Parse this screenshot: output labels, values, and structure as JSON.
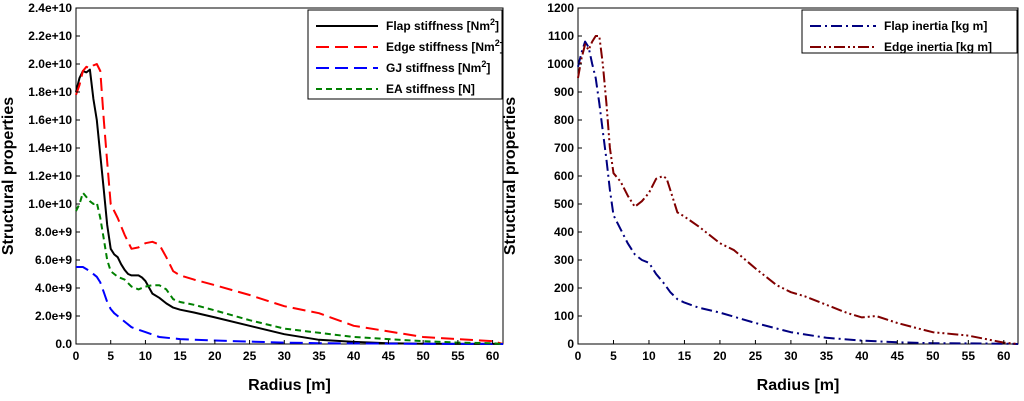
{
  "chart_data": [
    {
      "type": "line",
      "xlabel": "Radius [m]",
      "ylabel": "Structural properties",
      "xlim": [
        0,
        61.5
      ],
      "ylim": [
        0,
        24000000000
      ],
      "xticks": [
        0,
        5,
        10,
        15,
        20,
        25,
        30,
        35,
        40,
        45,
        50,
        55,
        60
      ],
      "xtick_labels": [
        "0",
        "5",
        "10",
        "15",
        "20",
        "25",
        "30",
        "35",
        "40",
        "45",
        "50",
        "55",
        "60"
      ],
      "yticks": [
        0,
        2000000000,
        4000000000,
        6000000000,
        8000000000,
        10000000000,
        12000000000,
        14000000000,
        16000000000,
        18000000000,
        20000000000,
        22000000000,
        24000000000
      ],
      "ytick_labels": [
        "0.0",
        "2.0e+9",
        "4.0e+9",
        "6.0e+9",
        "8.0e+9",
        "1.0e+10",
        "1.2e+10",
        "1.4e+10",
        "1.6e+10",
        "1.8e+10",
        "2.0e+10",
        "2.2e+10",
        "2.4e+10"
      ],
      "legend_position": "top-right",
      "series": [
        {
          "name": "Flap stiffness [Nm",
          "sup": "2",
          "suffix": "]",
          "color": "#000000",
          "dash": "solid",
          "x": [
            0,
            0.5,
            1,
            1.5,
            2,
            2.5,
            3,
            3.5,
            4,
            4.5,
            5,
            5.5,
            6,
            6.5,
            7,
            7.5,
            8,
            8.5,
            9,
            9.5,
            10,
            11,
            12,
            13,
            14,
            15,
            17,
            20,
            25,
            30,
            35,
            40,
            45,
            50,
            55,
            60,
            61.5
          ],
          "y": [
            18000000000.0,
            19000000000.0,
            19500000000.0,
            19400000000.0,
            19600000000.0,
            17500000000.0,
            16000000000.0,
            13500000000.0,
            11000000000.0,
            8500000000.0,
            6800000000.0,
            6400000000.0,
            6200000000.0,
            5700000000.0,
            5300000000.0,
            5000000000.0,
            4900000000.0,
            4900000000.0,
            4900000000.0,
            4750000000.0,
            4500000000.0,
            3600000000.0,
            3300000000.0,
            2900000000.0,
            2600000000.0,
            2450000000.0,
            2250000000.0,
            1900000000.0,
            1300000000.0,
            700000000.0,
            300000000.0,
            150000000.0,
            50000000.0,
            20000000.0,
            10000000.0,
            5000000.0,
            0
          ]
        },
        {
          "name": "Edge stiffness [Nm",
          "sup": "2",
          "suffix": "]",
          "color": "#ff0000",
          "dash": "long",
          "x": [
            0,
            0.5,
            1,
            1.5,
            2,
            2.5,
            3,
            3.5,
            4,
            4.5,
            5,
            5.5,
            6,
            7,
            8,
            9,
            10,
            11,
            12,
            13,
            14,
            15,
            17,
            20,
            25,
            30,
            35,
            40,
            45,
            50,
            55,
            60,
            61.5
          ],
          "y": [
            17800000000.0,
            18500000000.0,
            19500000000.0,
            19800000000.0,
            19700000000.0,
            19900000000.0,
            20000000000.0,
            19500000000.0,
            16000000000.0,
            13000000000.0,
            10000000000.0,
            9500000000.0,
            9000000000.0,
            7800000000.0,
            6800000000.0,
            6900000000.0,
            7200000000.0,
            7300000000.0,
            7100000000.0,
            6200000000.0,
            5200000000.0,
            4900000000.0,
            4600000000.0,
            4200000000.0,
            3500000000.0,
            2700000000.0,
            2200000000.0,
            1300000000.0,
            900000000.0,
            500000000.0,
            350000000.0,
            200000000.0,
            0
          ]
        },
        {
          "name": "GJ stiffness [Nm",
          "sup": "2",
          "suffix": "]",
          "color": "#0000ff",
          "dash": "long",
          "x": [
            0,
            1,
            2,
            3,
            3.5,
            4,
            4.5,
            5,
            5.5,
            6,
            7,
            8,
            10,
            12,
            14,
            15,
            20,
            25,
            30,
            35,
            40,
            45,
            50,
            55,
            60,
            61.5
          ],
          "y": [
            5500000000.0,
            5500000000.0,
            5200000000.0,
            4800000000.0,
            4400000000.0,
            3700000000.0,
            3000000000.0,
            2500000000.0,
            2200000000.0,
            2000000000.0,
            1600000000.0,
            1200000000.0,
            850000000.0,
            500000000.0,
            400000000.0,
            350000000.0,
            250000000.0,
            170000000.0,
            100000000.0,
            60000000.0,
            40000000.0,
            25000000.0,
            15000000.0,
            10000000.0,
            5000000.0,
            0
          ]
        },
        {
          "name": "EA stiffness [N]",
          "sup": "",
          "suffix": "",
          "color": "#008000",
          "dash": "short",
          "x": [
            0,
            0.5,
            1,
            1.5,
            2,
            2.5,
            3,
            3.5,
            4,
            4.5,
            5,
            5.5,
            6,
            7,
            8,
            9,
            10,
            11,
            12,
            13,
            14,
            15,
            17,
            20,
            25,
            30,
            35,
            40,
            45,
            50,
            55,
            60,
            61.5
          ],
          "y": [
            9500000000.0,
            10000000000.0,
            10800000000.0,
            10500000000.0,
            10200000000.0,
            10000000000.0,
            10100000000.0,
            9000000000.0,
            7500000000.0,
            6000000000.0,
            5200000000.0,
            5000000000.0,
            4800000000.0,
            4600000000.0,
            4100000000.0,
            3900000000.0,
            4100000000.0,
            4200000000.0,
            4200000000.0,
            3900000000.0,
            3200000000.0,
            3000000000.0,
            2800000000.0,
            2400000000.0,
            1700000000.0,
            1100000000.0,
            800000000.0,
            500000000.0,
            350000000.0,
            200000000.0,
            100000000.0,
            50000000.0,
            0
          ]
        }
      ]
    },
    {
      "type": "line",
      "xlabel": "Radius [m]",
      "ylabel": "Structural properties",
      "xlim": [
        0,
        62
      ],
      "ylim": [
        0,
        1200
      ],
      "xticks": [
        0,
        5,
        10,
        15,
        20,
        25,
        30,
        35,
        40,
        45,
        50,
        55,
        60
      ],
      "xtick_labels": [
        "0",
        "5",
        "10",
        "15",
        "20",
        "25",
        "30",
        "35",
        "40",
        "45",
        "50",
        "55",
        "60"
      ],
      "yticks": [
        0,
        100,
        200,
        300,
        400,
        500,
        600,
        700,
        800,
        900,
        1000,
        1100,
        1200
      ],
      "ytick_labels": [
        "0",
        "100",
        "200",
        "300",
        "400",
        "500",
        "600",
        "700",
        "800",
        "900",
        "1000",
        "1100",
        "1200"
      ],
      "legend_position": "top-right",
      "series": [
        {
          "name": "Flap inertia [kg m]",
          "sup": "",
          "suffix": "",
          "color": "#000080",
          "dash": "dashdot",
          "x": [
            0,
            0.5,
            1,
            1.5,
            2,
            2.5,
            3,
            3.5,
            4,
            4.5,
            5,
            6,
            7,
            8,
            9,
            10,
            11,
            12,
            13,
            14,
            15,
            17,
            20,
            25,
            30,
            35,
            40,
            45,
            50,
            55,
            60,
            62
          ],
          "y": [
            990,
            1040,
            1080,
            1060,
            1000,
            950,
            860,
            760,
            660,
            550,
            460,
            410,
            360,
            320,
            300,
            290,
            250,
            220,
            185,
            160,
            148,
            130,
            112,
            75,
            42,
            22,
            12,
            6,
            3,
            2,
            1,
            0
          ]
        },
        {
          "name": "Edge inertia [kg m]",
          "sup": "",
          "suffix": "",
          "color": "#800000",
          "dash": "dashdotdot",
          "x": [
            0,
            0.5,
            1,
            1.5,
            2,
            2.5,
            3,
            3.5,
            4,
            4.5,
            5,
            6,
            7,
            8,
            9,
            10,
            11,
            12,
            12.5,
            13,
            14,
            15,
            17,
            20,
            22,
            25,
            28,
            30,
            32,
            35,
            38,
            40,
            42,
            45,
            48,
            50,
            53,
            55,
            58,
            60,
            62
          ],
          "y": [
            950,
            1020,
            1070,
            1050,
            1080,
            1100,
            1100,
            1000,
            860,
            700,
            610,
            580,
            530,
            490,
            510,
            540,
            590,
            600,
            590,
            550,
            470,
            455,
            420,
            360,
            335,
            270,
            210,
            185,
            170,
            140,
            110,
            95,
            100,
            75,
            55,
            42,
            35,
            30,
            15,
            5,
            0
          ]
        }
      ]
    }
  ]
}
